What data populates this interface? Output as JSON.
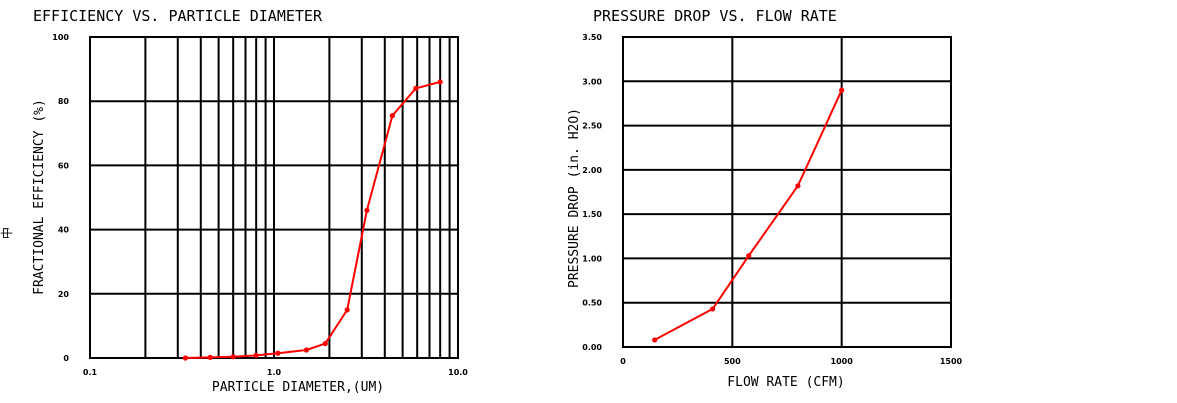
{
  "edge_mark": "中",
  "chart_data": [
    {
      "type": "line",
      "title": "EFFICIENCY VS. PARTICLE DIAMETER",
      "xlabel": "PARTICLE DIAMETER,(UM)",
      "ylabel": "FRACTIONAL EFFICIENCY (%)",
      "x_scale": "log",
      "xlim": [
        0.1,
        10.0
      ],
      "ylim": [
        0,
        100
      ],
      "x_ticks": [
        0.1,
        1.0,
        10.0
      ],
      "x_tick_labels": [
        "0.1",
        "1.0",
        "10.0"
      ],
      "y_ticks": [
        0,
        20,
        40,
        60,
        80,
        100
      ],
      "y_tick_labels": [
        "0",
        "20",
        "40",
        "60",
        "80",
        "100"
      ],
      "grid": true,
      "line_color": "#ff0000",
      "series": [
        {
          "x": [
            0.33,
            0.45,
            0.6,
            0.8,
            1.05,
            1.5,
            1.9,
            2.5,
            3.2,
            4.4,
            5.9,
            8.0
          ],
          "y": [
            0,
            0.2,
            0.4,
            0.8,
            1.5,
            2.5,
            4.5,
            15,
            46,
            75.5,
            84,
            86
          ]
        }
      ]
    },
    {
      "type": "line",
      "title": "PRESSURE DROP VS. FLOW RATE",
      "xlabel": "FLOW RATE (CFM)",
      "ylabel": "PRESSURE DROP (in. H2O)",
      "x_scale": "linear",
      "xlim": [
        0,
        1500
      ],
      "ylim": [
        0,
        3.5
      ],
      "x_ticks": [
        0,
        500,
        1000,
        1500
      ],
      "x_tick_labels": [
        "0",
        "500",
        "1000",
        "1500"
      ],
      "y_ticks": [
        0,
        0.5,
        1.0,
        1.5,
        2.0,
        2.5,
        3.0,
        3.5
      ],
      "y_tick_labels": [
        "0.00",
        "0.50",
        "1.00",
        "1.50",
        "2.00",
        "2.50",
        "3.00",
        "3.50"
      ],
      "grid": true,
      "line_color": "#ff0000",
      "series": [
        {
          "x": [
            145,
            410,
            575,
            800,
            1000
          ],
          "y": [
            0.08,
            0.43,
            1.03,
            1.82,
            2.9
          ]
        }
      ]
    }
  ]
}
